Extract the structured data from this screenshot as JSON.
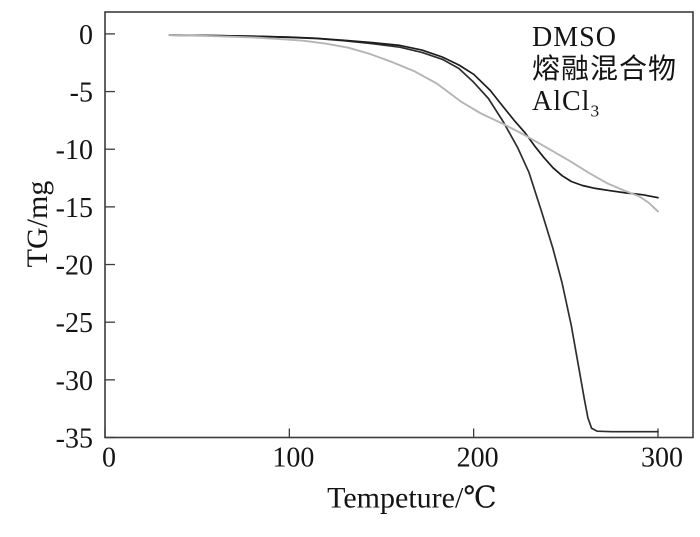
{
  "figure": {
    "background": "#ffffff",
    "text_color": "#141414",
    "frame_color": "#3c3c3c",
    "legend": {
      "items": [
        {
          "label": "DMSO",
          "sub": ""
        },
        {
          "label": "熔融混合物",
          "sub": ""
        },
        {
          "label": "AlCl",
          "sub": "3"
        }
      ]
    }
  },
  "chart_data": {
    "type": "line",
    "title": "",
    "xlabel": "Tempeture/℃",
    "ylabel": "TG/mg",
    "xlim": [
      0,
      319
    ],
    "ylim": [
      1.9,
      -35
    ],
    "xticks": [
      0,
      100,
      200,
      300
    ],
    "yticks": [
      0,
      -5,
      -10,
      -15,
      -20,
      -25,
      -30,
      -35
    ],
    "grid": false,
    "legend_position": "upper-right text only, no markers",
    "series": [
      {
        "name": "DMSO",
        "color": "#2e2e2e",
        "width": 1.7,
        "points": [
          [
            35,
            -0.1
          ],
          [
            60,
            -0.15
          ],
          [
            80,
            -0.2
          ],
          [
            100,
            -0.3
          ],
          [
            115,
            -0.4
          ],
          [
            130,
            -0.6
          ],
          [
            145,
            -0.85
          ],
          [
            160,
            -1.15
          ],
          [
            172,
            -1.6
          ],
          [
            183,
            -2.2
          ],
          [
            192,
            -3.0
          ],
          [
            200,
            -4.2
          ],
          [
            208,
            -5.6
          ],
          [
            216,
            -7.6
          ],
          [
            224,
            -9.9
          ],
          [
            230,
            -12.0
          ],
          [
            237,
            -15.5
          ],
          [
            243,
            -18.6
          ],
          [
            248,
            -21.6
          ],
          [
            253,
            -25.3
          ],
          [
            257,
            -28.9
          ],
          [
            260,
            -31.6
          ],
          [
            262,
            -33.3
          ],
          [
            264,
            -34.2
          ],
          [
            267,
            -34.45
          ],
          [
            275,
            -34.5
          ],
          [
            290,
            -34.5
          ],
          [
            300,
            -34.5
          ]
        ]
      },
      {
        "name": "熔融混合物",
        "color": "#1c1c1c",
        "width": 1.7,
        "points": [
          [
            35,
            -0.1
          ],
          [
            60,
            -0.15
          ],
          [
            80,
            -0.2
          ],
          [
            100,
            -0.28
          ],
          [
            115,
            -0.38
          ],
          [
            130,
            -0.55
          ],
          [
            145,
            -0.75
          ],
          [
            160,
            -1.0
          ],
          [
            172,
            -1.4
          ],
          [
            183,
            -2.0
          ],
          [
            192,
            -2.7
          ],
          [
            200,
            -3.5
          ],
          [
            209,
            -4.9
          ],
          [
            216,
            -6.3
          ],
          [
            222,
            -7.5
          ],
          [
            228,
            -8.6
          ],
          [
            233,
            -9.7
          ],
          [
            238,
            -10.7
          ],
          [
            243,
            -11.6
          ],
          [
            248,
            -12.3
          ],
          [
            253,
            -12.8
          ],
          [
            259,
            -13.15
          ],
          [
            266,
            -13.4
          ],
          [
            274,
            -13.6
          ],
          [
            283,
            -13.8
          ],
          [
            292,
            -13.95
          ],
          [
            300,
            -14.2
          ]
        ]
      },
      {
        "name": "AlCl3",
        "color": "#b5b5b5",
        "width": 1.9,
        "points": [
          [
            35,
            -0.1
          ],
          [
            60,
            -0.2
          ],
          [
            80,
            -0.3
          ],
          [
            95,
            -0.45
          ],
          [
            108,
            -0.6
          ],
          [
            120,
            -0.85
          ],
          [
            132,
            -1.2
          ],
          [
            144,
            -1.75
          ],
          [
            156,
            -2.45
          ],
          [
            168,
            -3.25
          ],
          [
            180,
            -4.3
          ],
          [
            193,
            -5.85
          ],
          [
            204,
            -6.9
          ],
          [
            216,
            -7.8
          ],
          [
            228,
            -8.8
          ],
          [
            240,
            -9.9
          ],
          [
            252,
            -11.0
          ],
          [
            263,
            -12.1
          ],
          [
            273,
            -13.0
          ],
          [
            282,
            -13.6
          ],
          [
            290,
            -14.1
          ],
          [
            295,
            -14.65
          ],
          [
            300,
            -15.4
          ]
        ]
      }
    ]
  }
}
